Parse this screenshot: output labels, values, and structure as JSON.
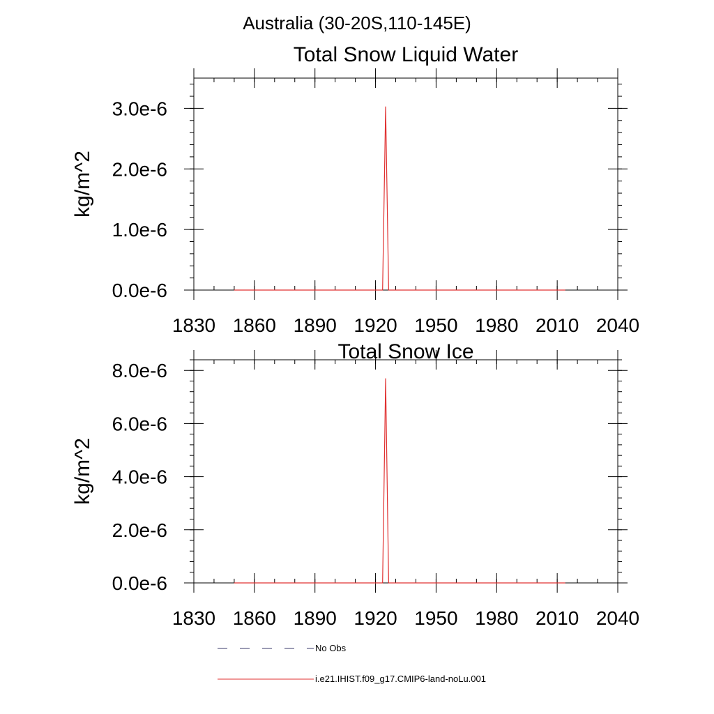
{
  "figure_title": "Australia (30-20S,110-145E)",
  "chart_data": [
    {
      "type": "line",
      "title": "Total Snow Liquid Water",
      "xlabel": "",
      "ylabel": "kg/m^2",
      "xlim": [
        1830,
        2040
      ],
      "ylim": [
        0,
        3.5e-06
      ],
      "x_ticks": [
        1830,
        1860,
        1890,
        1920,
        1950,
        1980,
        2010,
        2040
      ],
      "y_ticks": [
        0,
        1e-06,
        2e-06,
        3e-06
      ],
      "y_tick_labels": [
        "0.0e-6",
        "1.0e-6",
        "2.0e-6",
        "3.0e-6"
      ],
      "grid": false,
      "series": [
        {
          "name": "i.e21.IHIST.f09_g17.CMIP6-land-noLu.001",
          "color": "#e03030",
          "x": [
            1850,
            1923.5,
            1925,
            1926.5,
            2014
          ],
          "y": [
            0,
            0,
            3.03e-06,
            0,
            0
          ]
        }
      ]
    },
    {
      "type": "line",
      "title": "Total Snow Ice",
      "xlabel": "",
      "ylabel": "kg/m^2",
      "xlim": [
        1830,
        2040
      ],
      "ylim": [
        0,
        8.4e-06
      ],
      "x_ticks": [
        1830,
        1860,
        1890,
        1920,
        1950,
        1980,
        2010,
        2040
      ],
      "y_ticks": [
        0,
        2e-06,
        4e-06,
        6e-06,
        8e-06
      ],
      "y_tick_labels": [
        "0.0e-6",
        "2.0e-6",
        "4.0e-6",
        "6.0e-6",
        "8.0e-6"
      ],
      "grid": false,
      "series": [
        {
          "name": "i.e21.IHIST.f09_g17.CMIP6-land-noLu.001",
          "color": "#e03030",
          "x": [
            1850,
            1923.5,
            1925,
            1926.5,
            2014
          ],
          "y": [
            0,
            0,
            7.7e-06,
            0,
            0
          ]
        }
      ]
    }
  ],
  "legend": [
    {
      "label": "No Obs",
      "color": "#3a3a6a",
      "style": "dashed"
    },
    {
      "label": "i.e21.IHIST.f09_g17.CMIP6-land-noLu.001",
      "color": "#e03030",
      "style": "solid"
    }
  ]
}
